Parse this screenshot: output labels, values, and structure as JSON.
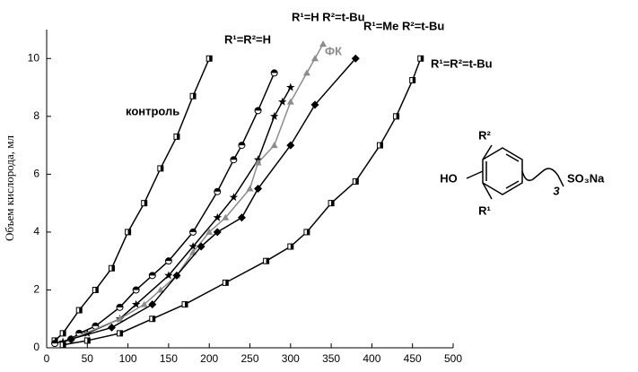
{
  "chart_data": {
    "type": "line",
    "y_label": "Объем кислорода, мл",
    "xlim": [
      0,
      500
    ],
    "xticks": [
      0,
      50,
      100,
      150,
      200,
      250,
      300,
      350,
      400,
      450,
      500
    ],
    "ylim": [
      0,
      11
    ],
    "yticks": [
      0,
      2,
      4,
      6,
      8,
      10
    ],
    "grid": false,
    "series": [
      {
        "name": "контроль",
        "color": "#000000",
        "marker": "square-half",
        "x": [
          10,
          20,
          40,
          60,
          80,
          100,
          120,
          140,
          160,
          180,
          200
        ],
        "values": [
          0.25,
          0.5,
          1.3,
          2.0,
          2.75,
          4.0,
          5.0,
          6.2,
          7.3,
          8.7,
          10.0
        ]
      },
      {
        "name": "R¹=R²=H",
        "color": "#000000",
        "marker": "circle-half",
        "x": [
          10,
          30,
          40,
          60,
          90,
          110,
          130,
          150,
          180,
          210,
          230,
          240,
          260,
          280
        ],
        "values": [
          0.15,
          0.3,
          0.5,
          0.75,
          1.4,
          2.0,
          2.5,
          3.0,
          4.0,
          5.4,
          6.5,
          7.0,
          8.2,
          9.5
        ]
      },
      {
        "name": "R¹=H R²=t-Bu",
        "color": "#000000",
        "marker": "star",
        "x": [
          20,
          50,
          90,
          110,
          150,
          180,
          210,
          230,
          260,
          280,
          290,
          300
        ],
        "values": [
          0.2,
          0.5,
          1.0,
          1.5,
          2.5,
          3.5,
          4.5,
          5.2,
          6.5,
          8.0,
          8.5,
          9.0
        ]
      },
      {
        "name": "ФК",
        "color": "#8c8c8c",
        "marker": "triangle",
        "x": [
          30,
          90,
          120,
          140,
          160,
          180,
          200,
          220,
          250,
          260,
          280,
          300,
          320,
          330,
          340
        ],
        "values": [
          0.3,
          1.0,
          1.5,
          2.0,
          2.5,
          3.3,
          4.0,
          4.5,
          5.5,
          6.4,
          7.0,
          8.5,
          9.5,
          10.0,
          10.5
        ]
      },
      {
        "name": "R¹=Me R²=t-Bu",
        "color": "#000000",
        "marker": "diamond",
        "x": [
          30,
          80,
          130,
          160,
          190,
          210,
          240,
          260,
          300,
          330,
          380
        ],
        "values": [
          0.3,
          0.7,
          1.5,
          2.5,
          3.5,
          4.0,
          4.5,
          5.5,
          7.0,
          8.4,
          10.0
        ]
      },
      {
        "name": "R¹=R²=t-Bu",
        "color": "#000000",
        "marker": "square-half",
        "x": [
          20,
          50,
          90,
          130,
          170,
          220,
          270,
          300,
          320,
          350,
          380,
          410,
          430,
          450,
          460
        ],
        "values": [
          0.1,
          0.25,
          0.5,
          1.0,
          1.5,
          2.25,
          3.0,
          3.5,
          4.0,
          5.0,
          5.75,
          7.0,
          8.0,
          9.25,
          10.0
        ]
      }
    ]
  },
  "structure": {
    "hydroxyl": "HO",
    "r2": "R²",
    "r1": "R¹",
    "chain_index": "3",
    "sulfonate": "SO₃Na"
  }
}
